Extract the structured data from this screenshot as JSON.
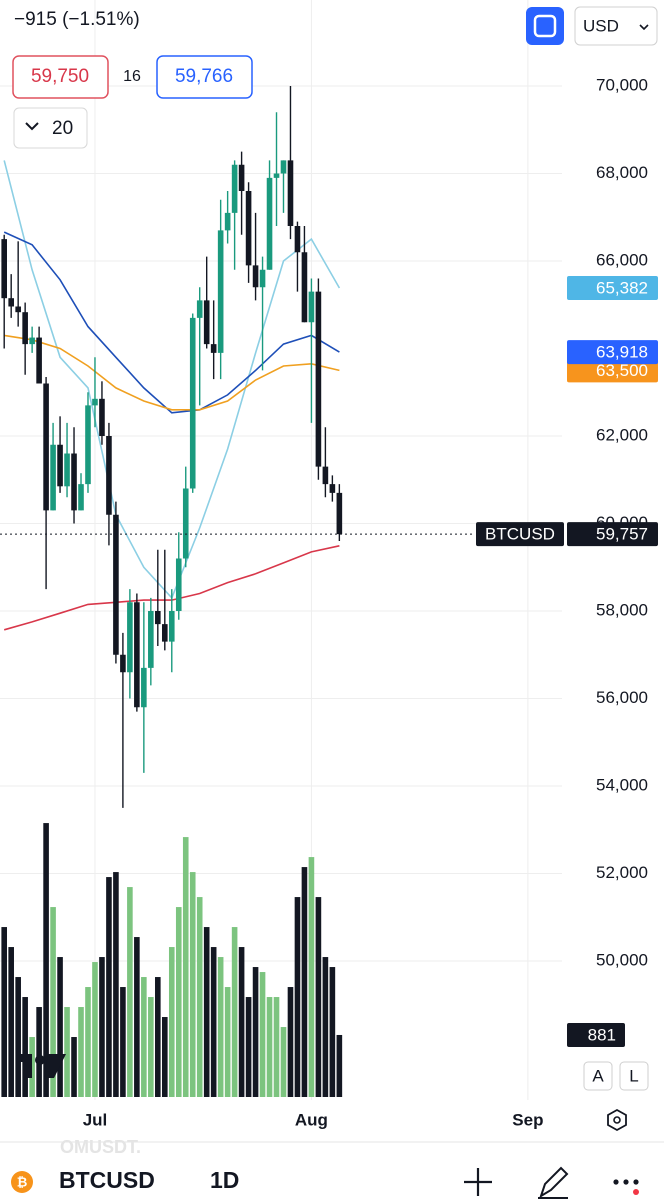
{
  "header": {
    "change": "−915 (−1.51%)",
    "bid": "59,750",
    "spread": "16",
    "ask": "59,766",
    "indicators": "20",
    "currency": "USD"
  },
  "axis_buttons": [
    "A",
    "L"
  ],
  "footer": {
    "watermark": "OMUSDT.",
    "symbol": "BTCUSD",
    "interval": "1D"
  },
  "chart_data": {
    "type": "candlestick",
    "x": [
      0,
      1,
      2,
      3,
      4,
      5,
      6,
      7,
      8,
      9,
      10,
      11,
      12,
      13,
      14,
      15,
      16,
      17,
      18,
      19,
      20,
      21,
      22,
      23,
      24,
      25,
      26,
      27,
      28,
      29,
      30,
      31,
      32,
      33,
      34,
      35,
      36,
      37,
      38,
      39,
      40,
      41,
      42,
      43,
      44,
      45,
      46,
      47,
      48
    ],
    "open": [
      66500,
      65150,
      64960,
      64830,
      64100,
      64250,
      63200,
      60300,
      61800,
      60850,
      61600,
      60300,
      60900,
      62700,
      62850,
      62000,
      60200,
      57000,
      56600,
      58200,
      55800,
      56700,
      58000,
      57700,
      57300,
      58000,
      59200,
      60800,
      64700,
      65100,
      64100,
      63900,
      66700,
      67100,
      68200,
      67600,
      65900,
      65400,
      65800,
      67900,
      68000,
      68300,
      66800,
      66200,
      64600,
      65300,
      61300,
      60900,
      60700
    ],
    "high": [
      66600,
      65700,
      66450,
      65050,
      64500,
      64500,
      63350,
      62300,
      62450,
      62300,
      62200,
      61150,
      63000,
      63800,
      63250,
      62300,
      60500,
      57500,
      58500,
      58400,
      58200,
      58300,
      59400,
      59400,
      58500,
      59800,
      61300,
      64800,
      65400,
      66100,
      65100,
      67400,
      67600,
      68300,
      68500,
      67800,
      67100,
      66100,
      68300,
      69400,
      68300,
      70000,
      66900,
      66800,
      65600,
      65600,
      62200,
      61100,
      60900
    ],
    "low": [
      64000,
      64700,
      64500,
      63400,
      63900,
      63200,
      58500,
      60300,
      60700,
      60600,
      60000,
      60300,
      60700,
      62200,
      61800,
      59500,
      56800,
      53500,
      56000,
      55700,
      54300,
      56300,
      57200,
      57100,
      56600,
      57800,
      59000,
      60700,
      62700,
      64000,
      63300,
      63300,
      66400,
      65800,
      66600,
      65500,
      65100,
      63500,
      65800,
      66800,
      67100,
      66500,
      65300,
      64600,
      62300,
      61000,
      60600,
      60500,
      59600
    ],
    "close": [
      65150,
      64960,
      64830,
      64100,
      64250,
      63200,
      60300,
      61800,
      60850,
      61600,
      60300,
      60900,
      62700,
      62850,
      62000,
      60200,
      57000,
      56600,
      58200,
      55800,
      56700,
      58000,
      57700,
      57300,
      58000,
      59200,
      60800,
      64700,
      65100,
      64100,
      63900,
      66700,
      67100,
      68200,
      67600,
      65900,
      65400,
      65800,
      67900,
      68000,
      68300,
      66800,
      66200,
      64600,
      65300,
      61300,
      60900,
      60700,
      59757
    ],
    "volume": [
      2414,
      2130,
      1704,
      1420,
      852,
      1278,
      3891,
      2698,
      1988,
      1278,
      852,
      1278,
      1562,
      1917,
      1988,
      3124,
      3195,
      1562,
      2982,
      2272,
      1704,
      1420,
      1704,
      1136,
      2130,
      2698,
      3692,
      3195,
      2840,
      2414,
      2130,
      1988,
      1562,
      2414,
      2130,
      1420,
      1846,
      1775,
      1420,
      1420,
      994,
      1562,
      2840,
      3266,
      3408,
      2840,
      1988,
      1846,
      881
    ],
    "up_color": "#1a9a7e",
    "down_color": "#131722",
    "volume_up_color": "#7cc47f",
    "volume_down_color": "#131722",
    "series": [
      {
        "color": "#8ccfe4",
        "x": [
          0,
          4,
          8,
          12,
          16,
          20,
          24,
          28,
          32,
          36,
          40,
          44,
          48
        ],
        "values": [
          68300,
          65800,
          63800,
          63100,
          60200,
          59000,
          58300,
          59900,
          61700,
          63900,
          66000,
          66500,
          65382
        ]
      },
      {
        "color": "#1e4fb8",
        "x": [
          0,
          4,
          8,
          12,
          16,
          20,
          24,
          28,
          32,
          36,
          40,
          44,
          48
        ],
        "values": [
          66660,
          66370,
          65570,
          64500,
          63800,
          63100,
          62530,
          62600,
          62940,
          63500,
          64100,
          64300,
          63918
        ]
      },
      {
        "color": "#f0a020",
        "x": [
          0,
          4,
          8,
          12,
          16,
          20,
          24,
          28,
          32,
          36,
          40,
          44,
          48
        ],
        "values": [
          64300,
          64200,
          64000,
          63600,
          63100,
          62800,
          62600,
          62600,
          62800,
          63280,
          63600,
          63650,
          63500
        ]
      },
      {
        "color": "#d8374a",
        "x": [
          0,
          4,
          8,
          12,
          16,
          20,
          24,
          28,
          32,
          36,
          40,
          44,
          48
        ],
        "values": [
          57570,
          57750,
          57950,
          58150,
          58200,
          58250,
          58250,
          58400,
          58650,
          58850,
          59100,
          59350,
          59490
        ]
      }
    ],
    "price_badges": [
      {
        "label": "65,382",
        "value": 65382,
        "color": "#4fb6e6"
      },
      {
        "label": "63,500",
        "value": 63500,
        "color": "#f7941d"
      },
      {
        "label": "63,918",
        "value": 63918,
        "color": "#2962ff"
      }
    ],
    "symbol_label": "BTCUSD",
    "last_price_label": "59,757",
    "ylim": [
      46800,
      72000
    ],
    "yticks": [
      {
        "value": 70000,
        "label": "70,000"
      },
      {
        "value": 68000,
        "label": "68,000"
      },
      {
        "value": 66000,
        "label": "66,000"
      },
      {
        "value": 62000,
        "label": "62,000"
      },
      {
        "value": 60000,
        "label": "60,000"
      },
      {
        "value": 58000,
        "label": "58,000"
      },
      {
        "value": 56000,
        "label": "56,000"
      },
      {
        "value": 54000,
        "label": "54,000"
      },
      {
        "value": 52000,
        "label": "52,000"
      },
      {
        "value": 50000,
        "label": "50,000"
      }
    ],
    "xlim": [
      0,
      79.6
    ],
    "xticks": [
      {
        "value": 13,
        "label": "Jul"
      },
      {
        "value": 44,
        "label": "Aug"
      },
      {
        "value": 75,
        "label": "Sep"
      }
    ],
    "grid": true
  }
}
